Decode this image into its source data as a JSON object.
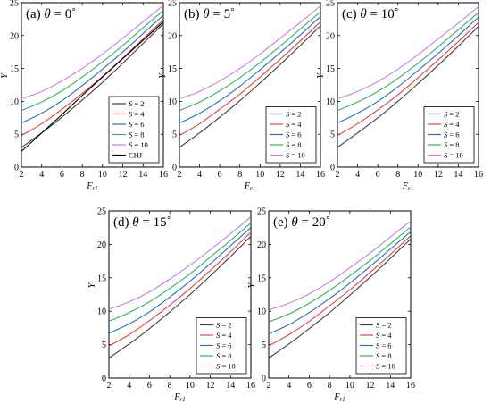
{
  "chart_data": [
    {
      "type": "line",
      "title": "(a)  θ = 0˚",
      "xlabel": "F_r1",
      "ylabel": "Y",
      "xlim": [
        2,
        16
      ],
      "ylim": [
        0,
        25
      ],
      "xticks": [
        2,
        4,
        6,
        8,
        10,
        12,
        14,
        16
      ],
      "yticks": [
        0,
        5,
        10,
        15,
        20,
        25
      ],
      "legend_position": "bottom-right",
      "series": [
        {
          "name": "S = 2",
          "color": "#404040",
          "x": [
            2,
            4,
            6,
            8,
            10,
            12,
            14,
            16
          ],
          "y": [
            3.0,
            5.2,
            7.6,
            10.2,
            12.9,
            15.8,
            18.8,
            21.8
          ]
        },
        {
          "name": "S = 4",
          "color": "#e8413a",
          "x": [
            2,
            4,
            6,
            8,
            10,
            12,
            14,
            16
          ],
          "y": [
            4.8,
            6.6,
            8.8,
            11.2,
            13.8,
            16.6,
            19.5,
            22.4
          ]
        },
        {
          "name": "S = 6",
          "color": "#2273b5",
          "x": [
            2,
            4,
            6,
            8,
            10,
            12,
            14,
            16
          ],
          "y": [
            6.7,
            8.2,
            10.1,
            12.4,
            14.9,
            17.5,
            20.3,
            23.1
          ]
        },
        {
          "name": "S = 8",
          "color": "#2db561",
          "x": [
            2,
            4,
            6,
            8,
            10,
            12,
            14,
            16
          ],
          "y": [
            8.6,
            9.9,
            11.6,
            13.7,
            16.0,
            18.5,
            21.2,
            23.8
          ]
        },
        {
          "name": "S = 10",
          "color": "#c77ce6",
          "x": [
            2,
            4,
            6,
            8,
            10,
            12,
            14,
            16
          ],
          "y": [
            10.4,
            11.5,
            13.1,
            15.0,
            17.2,
            19.6,
            22.1,
            24.6
          ]
        },
        {
          "name": "CHJ",
          "color": "#000000",
          "x": [
            2,
            4,
            6,
            8,
            10,
            12,
            14,
            16
          ],
          "y": [
            2.4,
            5.2,
            8.0,
            10.9,
            13.7,
            16.5,
            19.3,
            22.1
          ]
        }
      ]
    },
    {
      "type": "line",
      "title": "(b)  θ = 5˚",
      "xlabel": "F_r1",
      "ylabel": "Y",
      "xlim": [
        2,
        16
      ],
      "ylim": [
        0,
        25
      ],
      "xticks": [
        2,
        4,
        6,
        8,
        10,
        12,
        14,
        16
      ],
      "yticks": [
        0,
        5,
        10,
        15,
        20,
        25
      ],
      "legend_position": "bottom-right",
      "series": [
        {
          "name": "S = 2",
          "color": "#404040",
          "x": [
            2,
            4,
            6,
            8,
            10,
            12,
            14,
            16
          ],
          "y": [
            3.0,
            5.2,
            7.6,
            10.1,
            12.8,
            15.6,
            18.5,
            21.5
          ]
        },
        {
          "name": "S = 4",
          "color": "#e8413a",
          "x": [
            2,
            4,
            6,
            8,
            10,
            12,
            14,
            16
          ],
          "y": [
            4.8,
            6.6,
            8.8,
            11.1,
            13.7,
            16.4,
            19.2,
            22.1
          ]
        },
        {
          "name": "S = 6",
          "color": "#2273b5",
          "x": [
            2,
            4,
            6,
            8,
            10,
            12,
            14,
            16
          ],
          "y": [
            6.7,
            8.2,
            10.1,
            12.3,
            14.8,
            17.4,
            20.1,
            22.9
          ]
        },
        {
          "name": "S = 8",
          "color": "#2db561",
          "x": [
            2,
            4,
            6,
            8,
            10,
            12,
            14,
            16
          ],
          "y": [
            8.6,
            9.9,
            11.6,
            13.6,
            15.9,
            18.4,
            21.0,
            23.6
          ]
        },
        {
          "name": "S = 10",
          "color": "#c77ce6",
          "x": [
            2,
            4,
            6,
            8,
            10,
            12,
            14,
            16
          ],
          "y": [
            10.4,
            11.5,
            13.1,
            15.0,
            17.2,
            19.6,
            22.0,
            24.5
          ]
        }
      ]
    },
    {
      "type": "line",
      "title": "(c)  θ = 10˚",
      "xlabel": "F_r1",
      "ylabel": "Y",
      "xlim": [
        2,
        16
      ],
      "ylim": [
        0,
        25
      ],
      "xticks": [
        2,
        4,
        6,
        8,
        10,
        12,
        14,
        16
      ],
      "yticks": [
        0,
        5,
        10,
        15,
        20,
        25
      ],
      "legend_position": "bottom-right",
      "series": [
        {
          "name": "S = 2",
          "color": "#404040",
          "x": [
            2,
            4,
            6,
            8,
            10,
            12,
            14,
            16
          ],
          "y": [
            3.0,
            5.2,
            7.5,
            10.0,
            12.7,
            15.5,
            18.4,
            21.4
          ]
        },
        {
          "name": "S = 4",
          "color": "#e8413a",
          "x": [
            2,
            4,
            6,
            8,
            10,
            12,
            14,
            16
          ],
          "y": [
            4.8,
            6.6,
            8.7,
            11.0,
            13.6,
            16.3,
            19.1,
            22.0
          ]
        },
        {
          "name": "S = 6",
          "color": "#2273b5",
          "x": [
            2,
            4,
            6,
            8,
            10,
            12,
            14,
            16
          ],
          "y": [
            6.7,
            8.2,
            10.0,
            12.2,
            14.7,
            17.3,
            20.0,
            22.8
          ]
        },
        {
          "name": "S = 8",
          "color": "#2db561",
          "x": [
            2,
            4,
            6,
            8,
            10,
            12,
            14,
            16
          ],
          "y": [
            8.6,
            9.9,
            11.5,
            13.5,
            15.8,
            18.3,
            20.9,
            23.5
          ]
        },
        {
          "name": "S = 10",
          "color": "#c77ce6",
          "x": [
            2,
            4,
            6,
            8,
            10,
            12,
            14,
            16
          ],
          "y": [
            10.4,
            11.5,
            13.0,
            14.9,
            17.1,
            19.5,
            21.9,
            24.4
          ]
        }
      ]
    },
    {
      "type": "line",
      "title": "(d)  θ = 15˚",
      "xlabel": "F_r1",
      "ylabel": "Y",
      "xlim": [
        2,
        16
      ],
      "ylim": [
        0,
        25
      ],
      "xticks": [
        2,
        4,
        6,
        8,
        10,
        12,
        14,
        16
      ],
      "yticks": [
        0,
        5,
        10,
        15,
        20,
        25
      ],
      "legend_position": "bottom-right",
      "series": [
        {
          "name": "S = 2",
          "color": "#404040",
          "x": [
            2,
            4,
            6,
            8,
            10,
            12,
            14,
            16
          ],
          "y": [
            3.0,
            5.1,
            7.4,
            9.9,
            12.5,
            15.3,
            18.2,
            21.2
          ]
        },
        {
          "name": "S = 4",
          "color": "#e8413a",
          "x": [
            2,
            4,
            6,
            8,
            10,
            12,
            14,
            16
          ],
          "y": [
            4.8,
            6.5,
            8.6,
            10.9,
            13.4,
            16.1,
            18.9,
            21.8
          ]
        },
        {
          "name": "S = 6",
          "color": "#2273b5",
          "x": [
            2,
            4,
            6,
            8,
            10,
            12,
            14,
            16
          ],
          "y": [
            6.7,
            8.1,
            9.9,
            12.1,
            14.5,
            17.1,
            19.8,
            22.5
          ]
        },
        {
          "name": "S = 8",
          "color": "#2db561",
          "x": [
            2,
            4,
            6,
            8,
            10,
            12,
            14,
            16
          ],
          "y": [
            8.5,
            9.8,
            11.4,
            13.4,
            15.6,
            18.1,
            20.6,
            23.2
          ]
        },
        {
          "name": "S = 10",
          "color": "#c77ce6",
          "x": [
            2,
            4,
            6,
            8,
            10,
            12,
            14,
            16
          ],
          "y": [
            10.3,
            11.4,
            12.9,
            14.8,
            16.9,
            19.2,
            21.6,
            24.1
          ]
        }
      ]
    },
    {
      "type": "line",
      "title": "(e)  θ = 20˚",
      "xlabel": "F_r1",
      "ylabel": "Y",
      "xlim": [
        2,
        16
      ],
      "ylim": [
        0,
        25
      ],
      "xticks": [
        2,
        4,
        6,
        8,
        10,
        12,
        14,
        16
      ],
      "yticks": [
        0,
        5,
        10,
        15,
        20,
        25
      ],
      "legend_position": "bottom-right",
      "series": [
        {
          "name": "S = 2",
          "color": "#404040",
          "x": [
            2,
            4,
            6,
            8,
            10,
            12,
            14,
            16
          ],
          "y": [
            3.0,
            5.1,
            7.4,
            9.8,
            12.4,
            15.1,
            17.9,
            20.8
          ]
        },
        {
          "name": "S = 4",
          "color": "#e8413a",
          "x": [
            2,
            4,
            6,
            8,
            10,
            12,
            14,
            16
          ],
          "y": [
            4.8,
            6.5,
            8.5,
            10.8,
            13.2,
            15.8,
            18.5,
            21.3
          ]
        },
        {
          "name": "S = 6",
          "color": "#2273b5",
          "x": [
            2,
            4,
            6,
            8,
            10,
            12,
            14,
            16
          ],
          "y": [
            6.6,
            8.0,
            9.8,
            11.9,
            14.2,
            16.7,
            19.3,
            21.9
          ]
        },
        {
          "name": "S = 8",
          "color": "#2db561",
          "x": [
            2,
            4,
            6,
            8,
            10,
            12,
            14,
            16
          ],
          "y": [
            8.4,
            9.6,
            11.2,
            13.1,
            15.3,
            17.6,
            20.1,
            22.6
          ]
        },
        {
          "name": "S = 10",
          "color": "#c77ce6",
          "x": [
            2,
            4,
            6,
            8,
            10,
            12,
            14,
            16
          ],
          "y": [
            10.2,
            11.2,
            12.6,
            14.4,
            16.5,
            18.7,
            21.1,
            23.5
          ]
        }
      ]
    }
  ]
}
